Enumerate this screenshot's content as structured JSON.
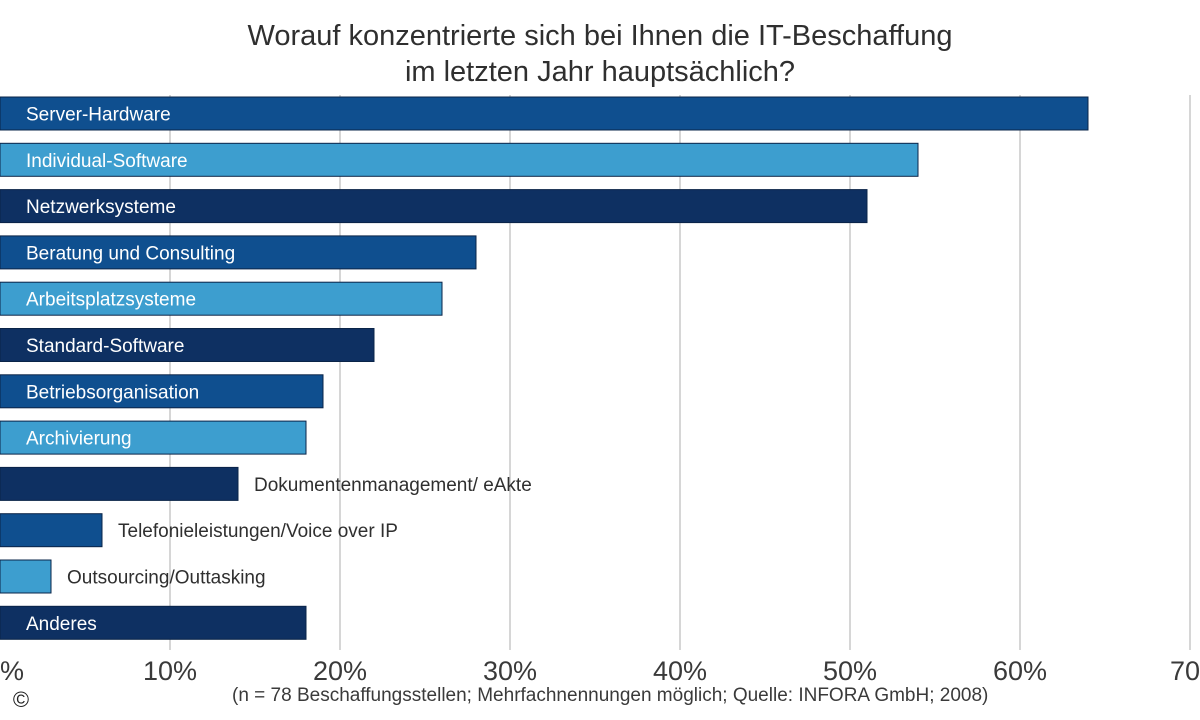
{
  "chart_data": {
    "type": "bar",
    "orientation": "horizontal",
    "title": [
      "Worauf konzentrierte sich bei Ihnen die IT-Beschaffung",
      "im letzten Jahr hauptsächlich?"
    ],
    "categories": [
      "Server-Hardware",
      "Individual-Software",
      "Netzwerksysteme",
      "Beratung und Consulting",
      "Arbeitsplatzsysteme",
      "Standard-Software",
      "Betriebsorganisation",
      "Archivierung",
      "Dokumentenmanagement/ eAkte",
      "Telefonieleistungen/Voice over IP",
      "Outsourcing/Outtasking",
      "Anderes"
    ],
    "values": [
      64,
      54,
      51,
      28,
      26,
      22,
      19,
      18,
      14,
      6,
      3,
      18
    ],
    "bar_colors": [
      "#0f4f8f",
      "#3d9ecf",
      "#0e3062",
      "#0f4f8f",
      "#3d9ecf",
      "#0e3062",
      "#0f4f8f",
      "#3d9ecf",
      "#0e3062",
      "#0f4f8f",
      "#3d9ecf",
      "#0e3062"
    ],
    "xlim": [
      0,
      70
    ],
    "xticks": [
      0,
      10,
      20,
      30,
      40,
      50,
      60,
      70
    ],
    "xtick_labels": [
      "%",
      "10%",
      "20%",
      "30%",
      "40%",
      "50%",
      "60%",
      "70"
    ],
    "grid": true,
    "gridline_color": "#c8c8c8",
    "footnote": "(n = 78 Beschaffungsstellen; Mehrfachnennungen möglich; Quelle: INFORA GmbH; 2008)"
  },
  "copyright_symbol": "©"
}
